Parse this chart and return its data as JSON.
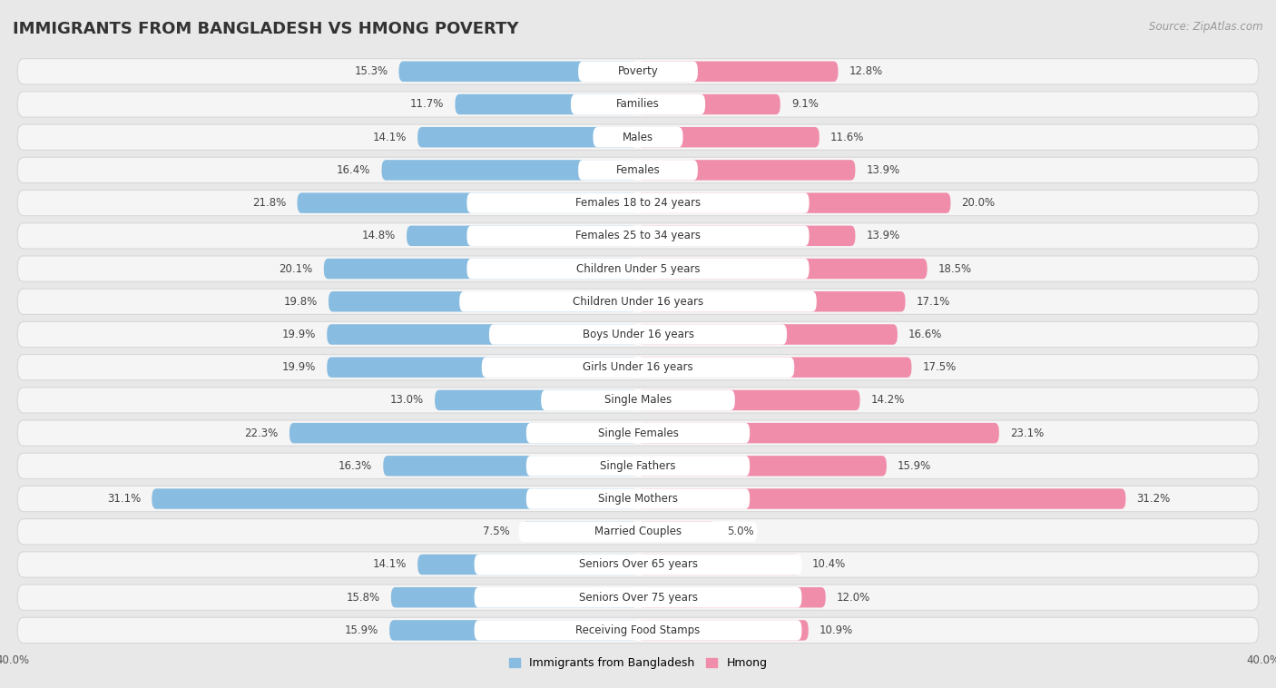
{
  "title": "IMMIGRANTS FROM BANGLADESH VS HMONG POVERTY",
  "source": "Source: ZipAtlas.com",
  "categories": [
    "Poverty",
    "Families",
    "Males",
    "Females",
    "Females 18 to 24 years",
    "Females 25 to 34 years",
    "Children Under 5 years",
    "Children Under 16 years",
    "Boys Under 16 years",
    "Girls Under 16 years",
    "Single Males",
    "Single Females",
    "Single Fathers",
    "Single Mothers",
    "Married Couples",
    "Seniors Over 65 years",
    "Seniors Over 75 years",
    "Receiving Food Stamps"
  ],
  "bangladesh_values": [
    15.3,
    11.7,
    14.1,
    16.4,
    21.8,
    14.8,
    20.1,
    19.8,
    19.9,
    19.9,
    13.0,
    22.3,
    16.3,
    31.1,
    7.5,
    14.1,
    15.8,
    15.9
  ],
  "hmong_values": [
    12.8,
    9.1,
    11.6,
    13.9,
    20.0,
    13.9,
    18.5,
    17.1,
    16.6,
    17.5,
    14.2,
    23.1,
    15.9,
    31.2,
    5.0,
    10.4,
    12.0,
    10.9
  ],
  "bangladesh_color": "#88bce0",
  "hmong_color": "#f08dab",
  "background_color": "#e8e8e8",
  "row_bg": "#f5f5f5",
  "row_border": "#d8d8d8",
  "xlim": 40.0,
  "title_fontsize": 13,
  "label_fontsize": 8.5,
  "value_fontsize": 8.5,
  "legend_fontsize": 9
}
